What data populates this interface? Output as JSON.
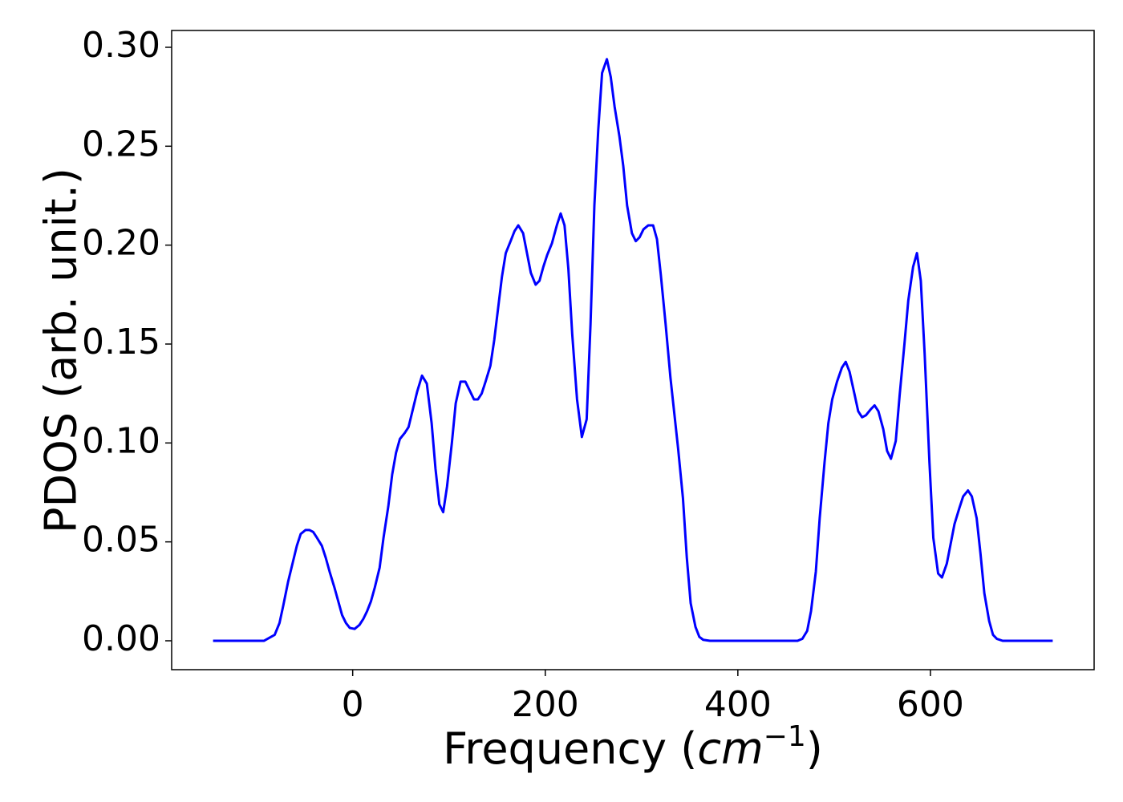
{
  "chart_data": {
    "type": "line",
    "y_label": "PDOS (arb. unit.)",
    "x_label_parts": [
      "Frequency (",
      "cm",
      "−1",
      ")"
    ],
    "xlim": [
      -188,
      770
    ],
    "ylim": [
      -0.0146,
      0.3085
    ],
    "xticks": [
      0,
      200,
      400,
      600
    ],
    "yticks": [
      {
        "value": 0,
        "label": "0.00"
      },
      {
        "value": 0.05,
        "label": "0.05"
      },
      {
        "value": 0.1,
        "label": "0.10"
      },
      {
        "value": 0.15,
        "label": "0.15"
      },
      {
        "value": 0.2,
        "label": "0.20"
      },
      {
        "value": 0.25,
        "label": "0.25"
      },
      {
        "value": 0.3,
        "label": "0.30"
      }
    ],
    "grid": false,
    "series": [
      {
        "color": "#0000ff",
        "x": [
          -145,
          -120,
          -92,
          -81,
          -76,
          -72,
          -67,
          -62,
          -58,
          -54,
          -49,
          -45,
          -41,
          -37,
          -32,
          -28,
          -24,
          -19,
          -15,
          -11,
          -7,
          -3,
          2,
          7,
          11,
          15,
          19,
          23,
          28,
          32,
          37,
          41,
          45,
          49,
          54,
          58,
          62,
          67,
          72,
          77,
          82,
          86,
          90,
          94,
          98,
          103,
          107,
          112,
          117,
          122,
          126,
          130,
          134,
          138,
          143,
          147,
          151,
          155,
          159,
          164,
          168,
          172,
          177,
          181,
          185,
          190,
          194,
          198,
          202,
          207,
          212,
          216,
          220,
          224,
          228,
          233,
          238,
          243,
          247,
          251,
          255,
          259,
          264,
          268,
          272,
          277,
          281,
          285,
          290,
          294,
          298,
          302,
          307,
          312,
          316,
          320,
          325,
          330,
          334,
          338,
          343,
          347,
          351,
          356,
          360,
          364,
          371,
          420,
          462,
          467,
          472,
          476,
          481,
          485,
          490,
          494,
          498,
          503,
          508,
          512,
          516,
          521,
          525,
          529,
          533,
          538,
          542,
          546,
          551,
          555,
          559,
          564,
          568,
          573,
          577,
          582,
          586,
          590,
          594,
          599,
          603,
          608,
          612,
          617,
          621,
          625,
          630,
          634,
          639,
          643,
          648,
          652,
          656,
          661,
          665,
          669,
          675,
          727
        ],
        "values": [
          0,
          0,
          0,
          0.003,
          0.009,
          0.018,
          0.03,
          0.04,
          0.048,
          0.054,
          0.056,
          0.056,
          0.055,
          0.052,
          0.048,
          0.042,
          0.035,
          0.027,
          0.02,
          0.013,
          0.009,
          0.0065,
          0.006,
          0.008,
          0.011,
          0.015,
          0.02,
          0.027,
          0.037,
          0.052,
          0.068,
          0.084,
          0.095,
          0.102,
          0.105,
          0.108,
          0.116,
          0.126,
          0.134,
          0.13,
          0.11,
          0.087,
          0.069,
          0.065,
          0.078,
          0.1,
          0.12,
          0.131,
          0.131,
          0.126,
          0.122,
          0.122,
          0.125,
          0.131,
          0.139,
          0.152,
          0.168,
          0.184,
          0.196,
          0.202,
          0.207,
          0.21,
          0.206,
          0.196,
          0.186,
          0.18,
          0.182,
          0.189,
          0.195,
          0.201,
          0.21,
          0.216,
          0.21,
          0.188,
          0.155,
          0.122,
          0.103,
          0.112,
          0.16,
          0.22,
          0.258,
          0.287,
          0.294,
          0.285,
          0.27,
          0.255,
          0.24,
          0.22,
          0.206,
          0.202,
          0.204,
          0.208,
          0.21,
          0.21,
          0.203,
          0.185,
          0.16,
          0.133,
          0.115,
          0.097,
          0.072,
          0.042,
          0.019,
          0.007,
          0.002,
          0.0005,
          0,
          0,
          0,
          0.001,
          0.005,
          0.015,
          0.035,
          0.062,
          0.09,
          0.11,
          0.122,
          0.131,
          0.138,
          0.141,
          0.136,
          0.125,
          0.116,
          0.113,
          0.114,
          0.117,
          0.119,
          0.116,
          0.107,
          0.096,
          0.092,
          0.101,
          0.124,
          0.15,
          0.172,
          0.189,
          0.196,
          0.182,
          0.145,
          0.09,
          0.052,
          0.034,
          0.032,
          0.039,
          0.049,
          0.059,
          0.067,
          0.073,
          0.076,
          0.073,
          0.062,
          0.044,
          0.024,
          0.01,
          0.003,
          0.001,
          0,
          0
        ]
      }
    ]
  }
}
